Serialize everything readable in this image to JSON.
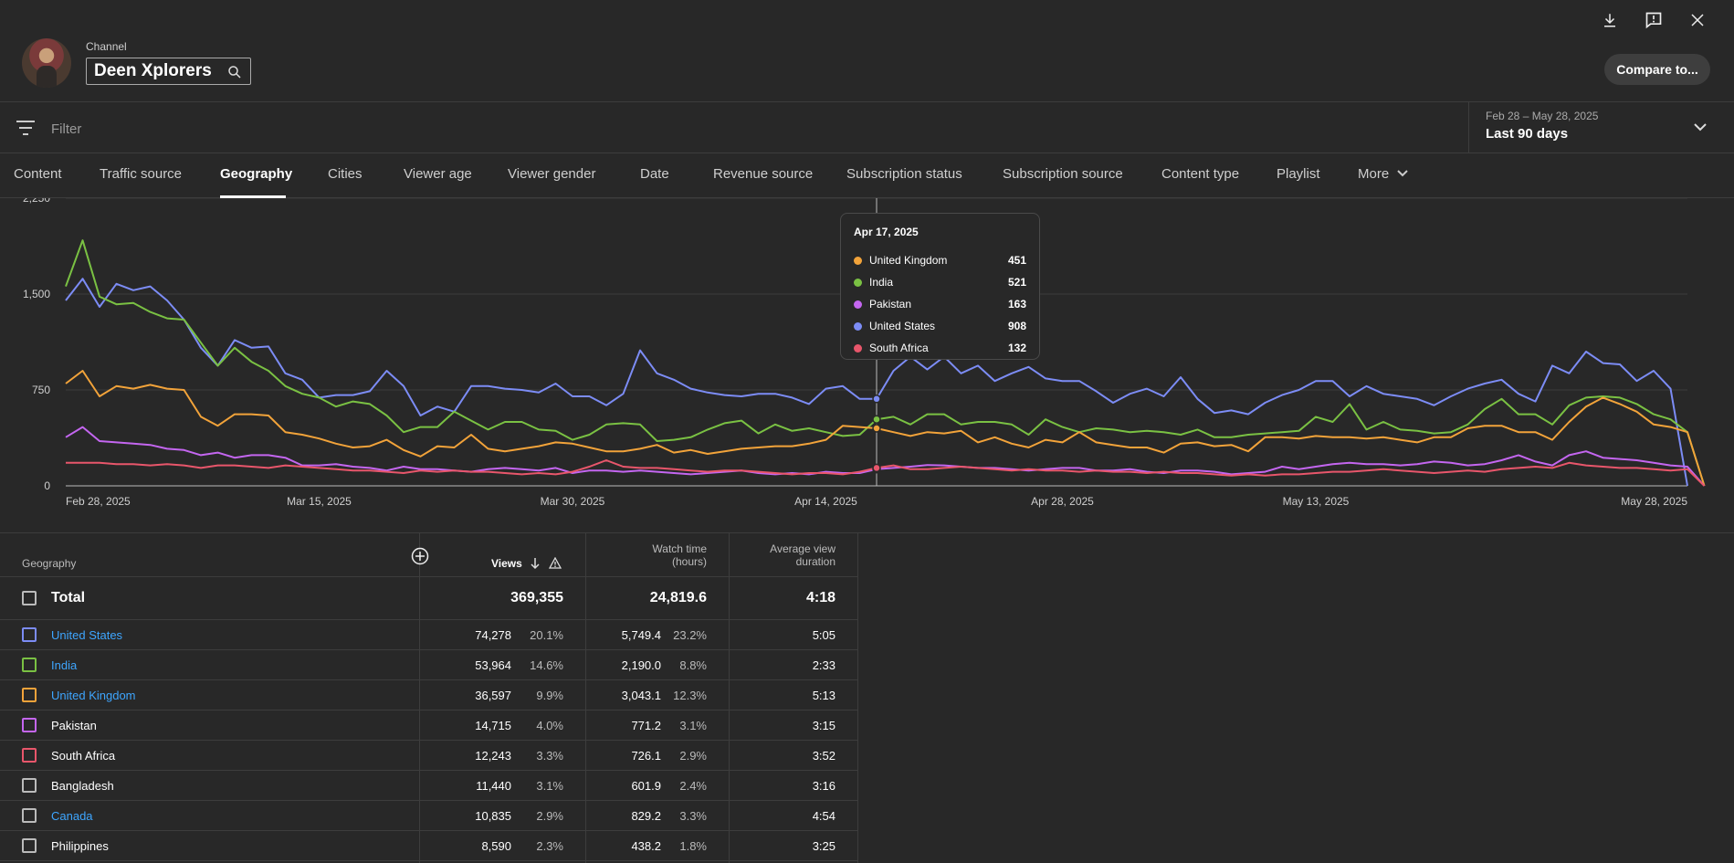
{
  "header": {
    "channel_label": "Channel",
    "channel_name": "Deen Xplorers",
    "compare_button": "Compare to..."
  },
  "filter": {
    "placeholder": "Filter"
  },
  "date_range": {
    "range": "Feb 28 – May 28, 2025",
    "label": "Last 90 days"
  },
  "tabs": [
    {
      "label": "Content"
    },
    {
      "label": "Traffic source"
    },
    {
      "label": "Geography"
    },
    {
      "label": "Cities"
    },
    {
      "label": "Viewer age"
    },
    {
      "label": "Viewer gender"
    },
    {
      "label": "Date"
    },
    {
      "label": "Revenue source"
    },
    {
      "label": "Subscription status"
    },
    {
      "label": "Subscription source"
    },
    {
      "label": "Content type"
    },
    {
      "label": "Playlist"
    },
    {
      "label": "More"
    }
  ],
  "active_tab": "Geography",
  "tooltip": {
    "date": "Apr 17, 2025",
    "rows": [
      {
        "name": "United Kingdom",
        "value": "451",
        "color": "#f2a33a"
      },
      {
        "name": "India",
        "value": "521",
        "color": "#7ac143"
      },
      {
        "name": "Pakistan",
        "value": "163",
        "color": "#c466f0"
      },
      {
        "name": "United States",
        "value": "908",
        "color": "#7c8cf5"
      },
      {
        "name": "South Africa",
        "value": "132",
        "color": "#e8566b"
      }
    ]
  },
  "chart_data": {
    "type": "line",
    "x_tick_labels": [
      "Feb 28, 2025",
      "Mar 15, 2025",
      "Mar 30, 2025",
      "Apr 14, 2025",
      "Apr 28, 2025",
      "May 13, 2025",
      "May 28, 2025"
    ],
    "y_tick_labels": [
      "0",
      "750",
      "1,500",
      "2,250"
    ],
    "ylim": [
      0,
      2250
    ],
    "grid": true,
    "highlight_date": "Apr 17, 2025",
    "series": [
      {
        "name": "United States",
        "color": "#7c8cf5",
        "values": [
          1450,
          1620,
          1400,
          1580,
          1530,
          1560,
          1450,
          1300,
          1080,
          940,
          1140,
          1080,
          1090,
          880,
          830,
          690,
          710,
          710,
          740,
          900,
          780,
          550,
          620,
          580,
          780,
          780,
          760,
          750,
          730,
          800,
          700,
          700,
          630,
          720,
          1060,
          880,
          830,
          760,
          730,
          710,
          700,
          720,
          720,
          690,
          640,
          760,
          780,
          680,
          680,
          900,
          1010,
          910,
          1010,
          880,
          940,
          820,
          880,
          930,
          840,
          820,
          820,
          740,
          650,
          720,
          760,
          700,
          850,
          680,
          570,
          590,
          560,
          650,
          710,
          750,
          820,
          820,
          700,
          780,
          720,
          700,
          680,
          630,
          700,
          760,
          800,
          830,
          720,
          660,
          940,
          880,
          1050,
          960,
          950,
          820,
          900,
          760,
          0
        ]
      },
      {
        "name": "India",
        "color": "#7ac143",
        "values": [
          1560,
          1920,
          1480,
          1420,
          1430,
          1360,
          1310,
          1300,
          1120,
          940,
          1080,
          970,
          900,
          780,
          720,
          690,
          620,
          660,
          640,
          550,
          420,
          460,
          460,
          580,
          510,
          440,
          500,
          500,
          440,
          430,
          360,
          400,
          480,
          490,
          480,
          350,
          360,
          380,
          440,
          490,
          510,
          410,
          480,
          430,
          450,
          420,
          390,
          400,
          520,
          540,
          480,
          560,
          560,
          480,
          500,
          500,
          480,
          400,
          520,
          460,
          420,
          450,
          440,
          420,
          430,
          420,
          400,
          440,
          380,
          380,
          400,
          410,
          420,
          430,
          540,
          500,
          640,
          440,
          500,
          440,
          430,
          410,
          420,
          480,
          600,
          680,
          560,
          560,
          480,
          630,
          690,
          700,
          690,
          640,
          560,
          520,
          420,
          0
        ]
      },
      {
        "name": "United Kingdom",
        "color": "#f2a33a",
        "values": [
          800,
          900,
          700,
          780,
          760,
          790,
          760,
          750,
          540,
          470,
          560,
          560,
          550,
          420,
          400,
          370,
          330,
          300,
          310,
          360,
          280,
          230,
          310,
          300,
          400,
          290,
          270,
          290,
          310,
          340,
          330,
          300,
          270,
          270,
          290,
          320,
          260,
          280,
          250,
          270,
          290,
          300,
          310,
          310,
          330,
          360,
          470,
          460,
          450,
          420,
          390,
          420,
          410,
          430,
          340,
          380,
          330,
          300,
          360,
          340,
          420,
          340,
          320,
          300,
          300,
          260,
          330,
          340,
          310,
          320,
          270,
          380,
          380,
          370,
          390,
          380,
          380,
          370,
          380,
          360,
          340,
          380,
          380,
          450,
          470,
          470,
          420,
          420,
          360,
          500,
          620,
          690,
          640,
          580,
          480,
          460,
          420,
          0
        ]
      },
      {
        "name": "Pakistan",
        "color": "#c466f0",
        "values": [
          380,
          460,
          350,
          340,
          330,
          320,
          290,
          280,
          240,
          260,
          220,
          240,
          240,
          220,
          160,
          160,
          170,
          150,
          140,
          120,
          150,
          130,
          130,
          120,
          110,
          130,
          140,
          130,
          120,
          140,
          100,
          120,
          120,
          110,
          120,
          110,
          100,
          90,
          100,
          110,
          120,
          100,
          90,
          100,
          90,
          110,
          100,
          100,
          130,
          140,
          150,
          163,
          160,
          150,
          140,
          140,
          130,
          120,
          130,
          140,
          140,
          120,
          120,
          130,
          110,
          100,
          120,
          120,
          110,
          90,
          100,
          110,
          150,
          130,
          150,
          170,
          180,
          170,
          170,
          160,
          170,
          190,
          180,
          160,
          170,
          200,
          240,
          190,
          160,
          240,
          270,
          220,
          210,
          200,
          180,
          160,
          150,
          0
        ]
      },
      {
        "name": "South Africa",
        "color": "#e8566b",
        "values": [
          180,
          180,
          180,
          170,
          170,
          160,
          170,
          160,
          140,
          160,
          160,
          150,
          140,
          160,
          150,
          140,
          130,
          120,
          120,
          110,
          100,
          120,
          110,
          120,
          110,
          110,
          100,
          90,
          100,
          90,
          110,
          150,
          200,
          150,
          140,
          140,
          130,
          120,
          110,
          120,
          120,
          110,
          100,
          90,
          100,
          100,
          90,
          110,
          140,
          160,
          130,
          130,
          140,
          150,
          140,
          130,
          120,
          130,
          120,
          120,
          110,
          120,
          110,
          110,
          100,
          110,
          100,
          100,
          90,
          80,
          90,
          80,
          90,
          90,
          100,
          110,
          110,
          120,
          130,
          120,
          110,
          100,
          110,
          120,
          110,
          130,
          140,
          150,
          140,
          180,
          160,
          150,
          140,
          140,
          130,
          120,
          130,
          0
        ]
      }
    ]
  },
  "table": {
    "col_geography": "Geography",
    "col_views": "Views",
    "col_watch_1": "Watch time",
    "col_watch_2": "(hours)",
    "col_avd_1": "Average view",
    "col_avd_2": "duration",
    "total": {
      "name": "Total",
      "views": "369,355",
      "watch": "24,819.6",
      "avd": "4:18"
    },
    "rows": [
      {
        "name": "United States",
        "views": "74,278",
        "views_pct": "20.1%",
        "watch": "5,749.4",
        "watch_pct": "23.2%",
        "avd": "5:05",
        "color": "#7c8cf5",
        "link": true
      },
      {
        "name": "India",
        "views": "53,964",
        "views_pct": "14.6%",
        "watch": "2,190.0",
        "watch_pct": "8.8%",
        "avd": "2:33",
        "color": "#7ac143",
        "link": true
      },
      {
        "name": "United Kingdom",
        "views": "36,597",
        "views_pct": "9.9%",
        "watch": "3,043.1",
        "watch_pct": "12.3%",
        "avd": "5:13",
        "color": "#f2a33a",
        "link": true
      },
      {
        "name": "Pakistan",
        "views": "14,715",
        "views_pct": "4.0%",
        "watch": "771.2",
        "watch_pct": "3.1%",
        "avd": "3:15",
        "color": "#c466f0",
        "link": false
      },
      {
        "name": "South Africa",
        "views": "12,243",
        "views_pct": "3.3%",
        "watch": "726.1",
        "watch_pct": "2.9%",
        "avd": "3:52",
        "color": "#e8566b",
        "link": false
      },
      {
        "name": "Bangladesh",
        "views": "11,440",
        "views_pct": "3.1%",
        "watch": "601.9",
        "watch_pct": "2.4%",
        "avd": "3:16",
        "color": "#bbbbbb",
        "link": false
      },
      {
        "name": "Canada",
        "views": "10,835",
        "views_pct": "2.9%",
        "watch": "829.2",
        "watch_pct": "3.3%",
        "avd": "4:54",
        "color": "#bbbbbb",
        "link": true
      },
      {
        "name": "Philippines",
        "views": "8,590",
        "views_pct": "2.3%",
        "watch": "438.2",
        "watch_pct": "1.8%",
        "avd": "3:25",
        "color": "#bbbbbb",
        "link": false
      }
    ]
  }
}
